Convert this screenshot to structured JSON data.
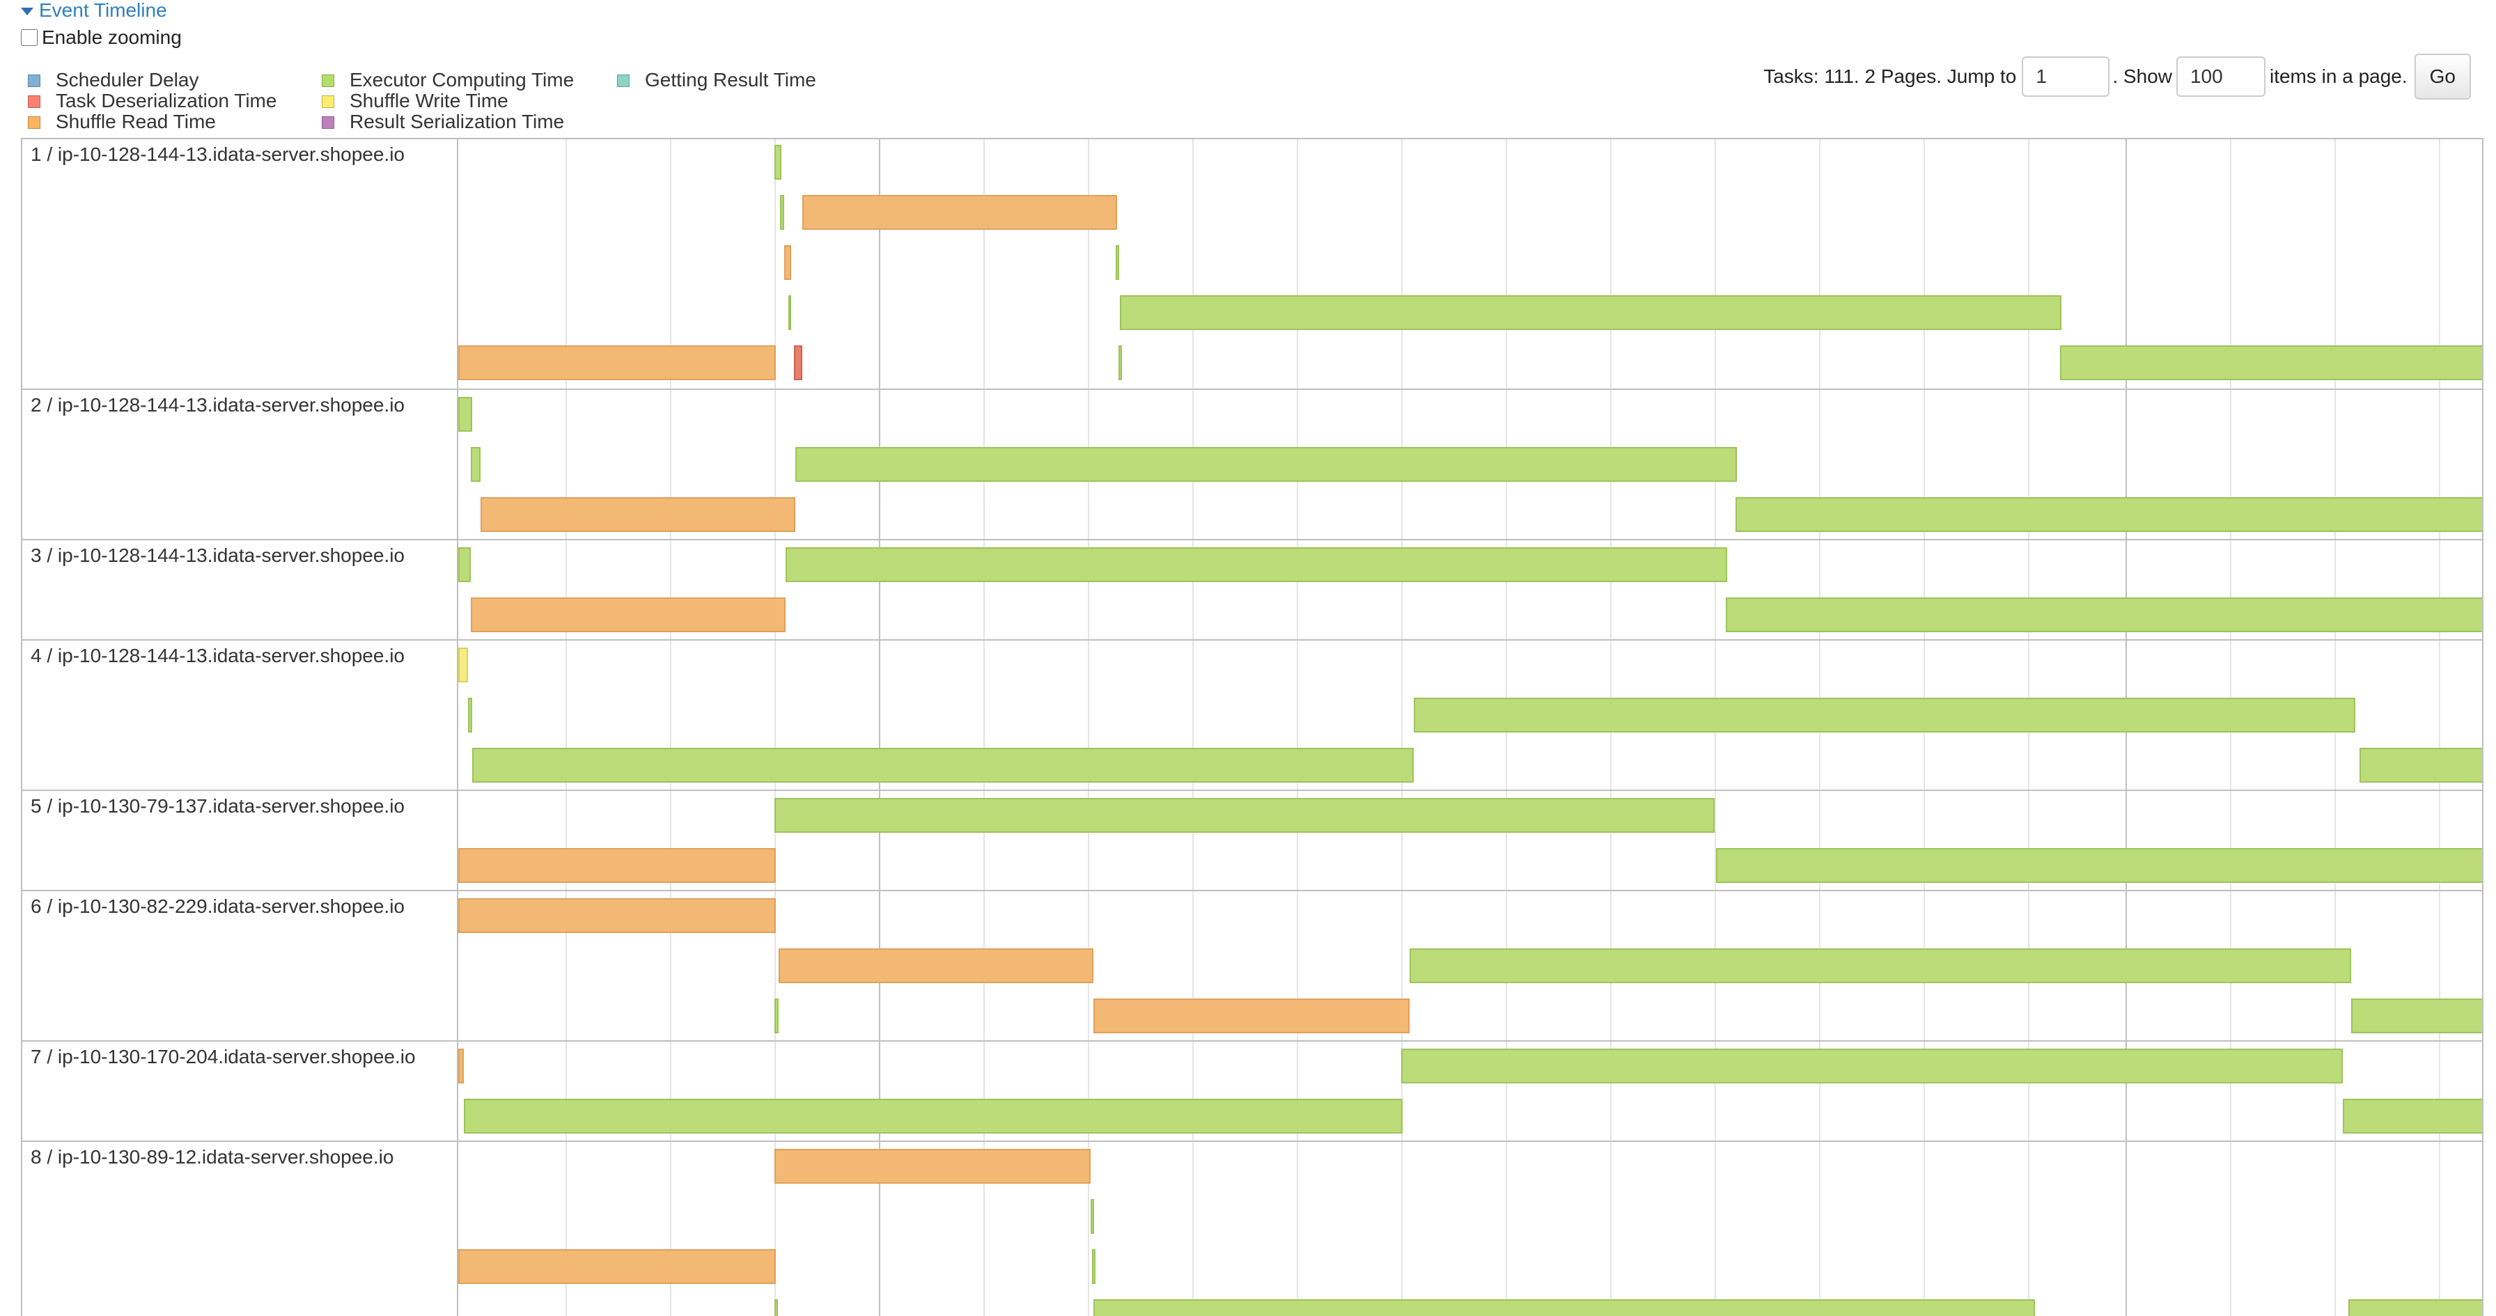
{
  "header": {
    "title": "Event Timeline",
    "zoom_label": "Enable zooming",
    "zoom_checked": false
  },
  "legend": [
    {
      "label": "Scheduler Delay",
      "color": "#80b1d3"
    },
    {
      "label": "Task Deserialization Time",
      "color": "#fb8072"
    },
    {
      "label": "Shuffle Read Time",
      "color": "#fdb462"
    },
    {
      "label": "Executor Computing Time",
      "color": "#b3de69"
    },
    {
      "label": "Shuffle Write Time",
      "color": "#ffed6f"
    },
    {
      "label": "Result Serialization Time",
      "color": "#bc80bd"
    },
    {
      "label": "Getting Result Time",
      "color": "#8dd3c7"
    }
  ],
  "pager": {
    "summary": "Tasks: 111. 2 Pages. Jump to",
    "page_value": "1",
    "show_label": ". Show",
    "page_size_value": "100",
    "items_label": "items in a page.",
    "go_label": "Go"
  },
  "colors": {
    "executor_computing": "#bbdc79",
    "shuffle_read": "#f2b874",
    "task_deserialization": "#e8806e",
    "shuffle_write": "#f5ed82"
  },
  "rows": [
    {
      "label": "1 / ip-10-128-144-13.idata-server.shopee.io"
    },
    {
      "label": "2 / ip-10-128-144-13.idata-server.shopee.io"
    },
    {
      "label": "3 / ip-10-128-144-13.idata-server.shopee.io"
    },
    {
      "label": "4 / ip-10-128-144-13.idata-server.shopee.io"
    },
    {
      "label": "5 / ip-10-130-79-137.idata-server.shopee.io"
    },
    {
      "label": "6 / ip-10-130-82-229.idata-server.shopee.io"
    },
    {
      "label": "7 / ip-10-130-170-204.idata-server.shopee.io"
    },
    {
      "label": "8 / ip-10-130-89-12.idata-server.shopee.io"
    }
  ]
}
